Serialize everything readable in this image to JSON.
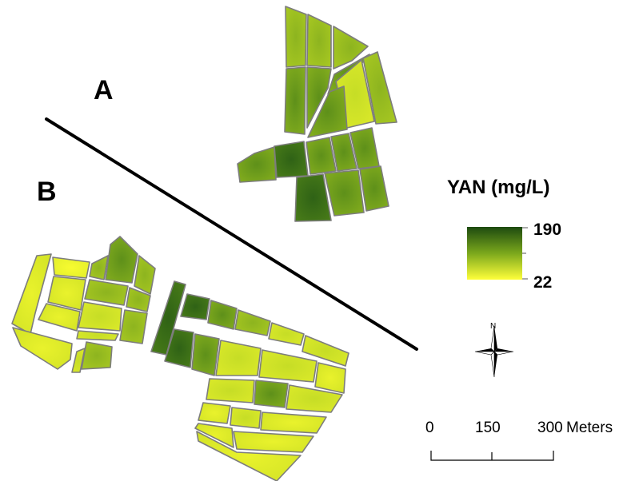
{
  "map": {
    "region_labels": {
      "a": "A",
      "b": "B"
    },
    "legend": {
      "title": "YAN (mg/L)",
      "max_label": "190",
      "min_label": "22",
      "color_high": "#1f4d12",
      "color_mid": "#6f9e18",
      "color_low": "#ffff3a"
    },
    "north_arrow": {
      "label": "N",
      "icon": "compass-rose-icon"
    },
    "scale_bar": {
      "ticks": [
        "0",
        "150",
        "300"
      ],
      "unit": "Meters"
    }
  }
}
